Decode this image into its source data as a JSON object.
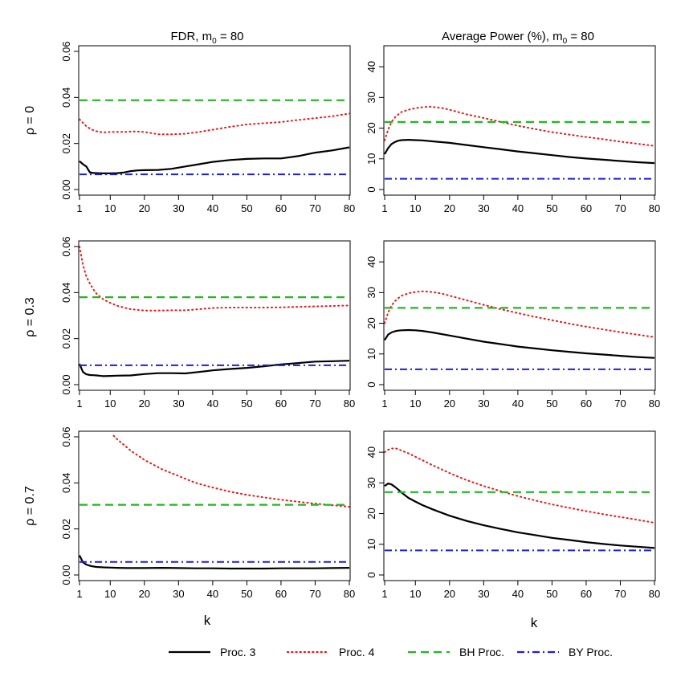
{
  "colors": {
    "proc3": "#000000",
    "proc4": "#e41a1c",
    "bh": "#22b822",
    "by": "#1f1fd6"
  },
  "columns": [
    {
      "title_main": "FDR, m",
      "title_sub": "0",
      "title_rest": " = 80"
    },
    {
      "title_main": "Average Power (%), m",
      "title_sub": "0",
      "title_rest": " = 80"
    }
  ],
  "rows": [
    {
      "label": "ρ = 0"
    },
    {
      "label": "ρ = 0.3"
    },
    {
      "label": "ρ = 0.7"
    }
  ],
  "xlabel": "k",
  "x_ticks": [
    "1",
    "10",
    "20",
    "30",
    "40",
    "50",
    "60",
    "70",
    "80"
  ],
  "legend": [
    {
      "label": "Proc. 3",
      "style": "solid",
      "color_key": "proc3"
    },
    {
      "label": "Proc. 4",
      "style": "dotted",
      "color_key": "proc4"
    },
    {
      "label": "BH Proc.",
      "style": "dashed",
      "color_key": "bh"
    },
    {
      "label": "BY Proc.",
      "style": "dashdot",
      "color_key": "by"
    }
  ],
  "chart_data": [
    {
      "type": "line",
      "row": 0,
      "col": 0,
      "xlim": [
        1,
        80
      ],
      "ylim": [
        0,
        0.06
      ],
      "y_ticks": [
        0.0,
        0.02,
        0.04,
        0.06
      ],
      "y_tick_labels": [
        "0.00",
        "0.02",
        "0.04",
        "0.06"
      ],
      "series": [
        {
          "name": "Proc. 3",
          "x": [
            1,
            2,
            3,
            4,
            5,
            6,
            8,
            10,
            12,
            14,
            16,
            18,
            20,
            24,
            28,
            32,
            36,
            40,
            45,
            50,
            55,
            60,
            65,
            70,
            75,
            80
          ],
          "y": [
            0.0123,
            0.011,
            0.01,
            0.0075,
            0.0072,
            0.0071,
            0.007,
            0.007,
            0.0071,
            0.0074,
            0.008,
            0.0083,
            0.0084,
            0.0085,
            0.009,
            0.01,
            0.011,
            0.012,
            0.0128,
            0.0133,
            0.0135,
            0.0135,
            0.0145,
            0.016,
            0.017,
            0.0183
          ]
        },
        {
          "name": "Proc. 4",
          "x": [
            1,
            2,
            3,
            4,
            5,
            6,
            8,
            10,
            12,
            14,
            16,
            18,
            20,
            24,
            28,
            32,
            36,
            40,
            45,
            50,
            55,
            60,
            65,
            70,
            75,
            80
          ],
          "y": [
            0.0305,
            0.029,
            0.0275,
            0.0265,
            0.0258,
            0.0253,
            0.0248,
            0.025,
            0.025,
            0.025,
            0.0252,
            0.0252,
            0.025,
            0.024,
            0.024,
            0.0242,
            0.025,
            0.026,
            0.0272,
            0.0283,
            0.0288,
            0.0293,
            0.0302,
            0.031,
            0.0318,
            0.033
          ]
        },
        {
          "name": "BH Proc.",
          "x": [
            1,
            80
          ],
          "y": [
            0.0388,
            0.0388
          ]
        },
        {
          "name": "BY Proc.",
          "x": [
            1,
            80
          ],
          "y": [
            0.0066,
            0.0066
          ]
        }
      ]
    },
    {
      "type": "line",
      "row": 0,
      "col": 1,
      "xlim": [
        1,
        80
      ],
      "ylim": [
        0,
        45
      ],
      "y_ticks": [
        0,
        10,
        20,
        30,
        40
      ],
      "y_tick_labels": [
        "0",
        "10",
        "20",
        "30",
        "40"
      ],
      "series": [
        {
          "name": "Proc. 3",
          "x": [
            1,
            2,
            3,
            4,
            5,
            6,
            8,
            10,
            12,
            15,
            20,
            25,
            30,
            35,
            40,
            45,
            50,
            55,
            60,
            65,
            70,
            75,
            80
          ],
          "y": [
            11.5,
            13.5,
            14.8,
            15.5,
            15.9,
            16.1,
            16.2,
            16.1,
            16.0,
            15.7,
            15.2,
            14.5,
            13.8,
            13.1,
            12.4,
            11.8,
            11.2,
            10.6,
            10.1,
            9.7,
            9.3,
            8.9,
            8.6
          ]
        },
        {
          "name": "Proc. 4",
          "x": [
            1,
            2,
            3,
            4,
            5,
            6,
            8,
            10,
            12,
            14,
            16,
            18,
            20,
            25,
            30,
            35,
            40,
            45,
            50,
            55,
            60,
            65,
            70,
            75,
            80
          ],
          "y": [
            16.0,
            19.5,
            22.0,
            23.5,
            24.5,
            25.3,
            26.0,
            26.5,
            26.8,
            27.0,
            26.8,
            26.5,
            26.0,
            24.5,
            23.3,
            22.0,
            20.8,
            19.7,
            18.7,
            17.9,
            17.1,
            16.4,
            15.6,
            14.9,
            14.2
          ]
        },
        {
          "name": "BH Proc.",
          "x": [
            1,
            80
          ],
          "y": [
            22.0,
            22.0
          ]
        },
        {
          "name": "BY Proc.",
          "x": [
            1,
            80
          ],
          "y": [
            3.5,
            3.5
          ]
        }
      ]
    },
    {
      "type": "line",
      "row": 1,
      "col": 0,
      "xlim": [
        1,
        80
      ],
      "ylim": [
        0,
        0.06
      ],
      "y_ticks": [
        0.0,
        0.02,
        0.04,
        0.06
      ],
      "y_tick_labels": [
        "0.00",
        "0.02",
        "0.04",
        "0.06"
      ],
      "series": [
        {
          "name": "Proc. 3",
          "x": [
            1,
            2,
            3,
            4,
            5,
            6,
            8,
            10,
            12,
            16,
            20,
            24,
            28,
            32,
            36,
            40,
            45,
            50,
            55,
            60,
            65,
            70,
            75,
            80
          ],
          "y": [
            0.009,
            0.0055,
            0.0045,
            0.0042,
            0.0041,
            0.004,
            0.0037,
            0.0038,
            0.0039,
            0.004,
            0.0046,
            0.005,
            0.005,
            0.0049,
            0.0055,
            0.0062,
            0.0068,
            0.0073,
            0.008,
            0.0088,
            0.0094,
            0.01,
            0.0102,
            0.0104
          ]
        },
        {
          "name": "Proc. 4",
          "x": [
            1,
            2,
            3,
            4,
            5,
            6,
            8,
            10,
            12,
            14,
            16,
            18,
            20,
            24,
            28,
            32,
            36,
            40,
            45,
            50,
            55,
            60,
            65,
            70,
            75,
            80
          ],
          "y": [
            0.06,
            0.052,
            0.047,
            0.044,
            0.0415,
            0.0395,
            0.037,
            0.0355,
            0.0343,
            0.0335,
            0.0328,
            0.0325,
            0.0322,
            0.0322,
            0.0323,
            0.0323,
            0.0328,
            0.0333,
            0.0335,
            0.0335,
            0.0335,
            0.0336,
            0.0338,
            0.034,
            0.0342,
            0.0344
          ]
        },
        {
          "name": "BH Proc.",
          "x": [
            1,
            80
          ],
          "y": [
            0.038,
            0.038
          ]
        },
        {
          "name": "BY Proc.",
          "x": [
            1,
            80
          ],
          "y": [
            0.0084,
            0.0084
          ]
        }
      ]
    },
    {
      "type": "line",
      "row": 1,
      "col": 1,
      "xlim": [
        1,
        80
      ],
      "ylim": [
        0,
        45
      ],
      "y_ticks": [
        0,
        10,
        20,
        30,
        40
      ],
      "y_tick_labels": [
        "0",
        "10",
        "20",
        "30",
        "40"
      ],
      "series": [
        {
          "name": "Proc. 3",
          "x": [
            1,
            2,
            3,
            4,
            5,
            6,
            8,
            10,
            12,
            15,
            20,
            25,
            30,
            35,
            40,
            45,
            50,
            55,
            60,
            65,
            70,
            75,
            80
          ],
          "y": [
            14.5,
            16.3,
            17.0,
            17.4,
            17.6,
            17.7,
            17.8,
            17.7,
            17.5,
            17.0,
            16.0,
            15.0,
            14.0,
            13.2,
            12.4,
            11.8,
            11.2,
            10.7,
            10.2,
            9.8,
            9.4,
            9.0,
            8.7
          ]
        },
        {
          "name": "Proc. 4",
          "x": [
            1,
            2,
            3,
            4,
            5,
            6,
            8,
            10,
            12,
            14,
            16,
            18,
            20,
            25,
            30,
            35,
            40,
            45,
            50,
            55,
            60,
            65,
            70,
            75,
            80
          ],
          "y": [
            20.0,
            23.5,
            25.8,
            27.2,
            28.2,
            29.0,
            29.8,
            30.2,
            30.4,
            30.3,
            30.0,
            29.6,
            29.0,
            27.5,
            26.0,
            24.6,
            23.3,
            22.1,
            21.0,
            19.9,
            18.9,
            18.0,
            17.1,
            16.3,
            15.5
          ]
        },
        {
          "name": "BH Proc.",
          "x": [
            1,
            80
          ],
          "y": [
            25.0,
            25.0
          ]
        },
        {
          "name": "BY Proc.",
          "x": [
            1,
            80
          ],
          "y": [
            5.0,
            5.0
          ]
        }
      ]
    },
    {
      "type": "line",
      "row": 2,
      "col": 0,
      "xlim": [
        1,
        80
      ],
      "ylim": [
        0,
        0.06
      ],
      "y_ticks": [
        0.0,
        0.02,
        0.04,
        0.06
      ],
      "y_tick_labels": [
        "0.00",
        "0.02",
        "0.04",
        "0.06"
      ],
      "series": [
        {
          "name": "Proc. 3",
          "x": [
            1,
            2,
            3,
            4,
            5,
            6,
            8,
            10,
            12,
            15,
            20,
            25,
            30,
            35,
            40,
            45,
            50,
            55,
            60,
            65,
            70,
            75,
            80
          ],
          "y": [
            0.0085,
            0.0055,
            0.0045,
            0.004,
            0.0037,
            0.0035,
            0.0033,
            0.0032,
            0.0031,
            0.003,
            0.003,
            0.0031,
            0.003,
            0.0029,
            0.0029,
            0.0028,
            0.0028,
            0.0028,
            0.0029,
            0.0029,
            0.0029,
            0.003,
            0.0031
          ]
        },
        {
          "name": "Proc. 4",
          "x": [
            11,
            12,
            14,
            16,
            18,
            20,
            25,
            30,
            35,
            40,
            45,
            50,
            55,
            60,
            65,
            70,
            75,
            80
          ],
          "y": [
            0.0605,
            0.059,
            0.0565,
            0.054,
            0.052,
            0.05,
            0.046,
            0.043,
            0.04,
            0.038,
            0.0362,
            0.0348,
            0.0337,
            0.0327,
            0.0318,
            0.031,
            0.0303,
            0.0296
          ]
        },
        {
          "name": "BH Proc.",
          "x": [
            1,
            80
          ],
          "y": [
            0.0305,
            0.0305
          ]
        },
        {
          "name": "BY Proc.",
          "x": [
            1,
            80
          ],
          "y": [
            0.0057,
            0.0057
          ]
        }
      ]
    },
    {
      "type": "line",
      "row": 2,
      "col": 1,
      "xlim": [
        1,
        80
      ],
      "ylim": [
        0,
        45
      ],
      "y_ticks": [
        0,
        10,
        20,
        30,
        40
      ],
      "y_tick_labels": [
        "0",
        "10",
        "20",
        "30",
        "40"
      ],
      "series": [
        {
          "name": "Proc. 3",
          "x": [
            1,
            2,
            3,
            4,
            5,
            6,
            8,
            10,
            12,
            15,
            20,
            25,
            30,
            35,
            40,
            45,
            50,
            55,
            60,
            65,
            70,
            75,
            80
          ],
          "y": [
            29.0,
            29.8,
            29.5,
            28.7,
            27.8,
            26.8,
            25.1,
            23.9,
            22.8,
            21.4,
            19.3,
            17.6,
            16.2,
            15.0,
            13.9,
            13.0,
            12.1,
            11.4,
            10.7,
            10.1,
            9.6,
            9.2,
            8.8
          ]
        },
        {
          "name": "Proc. 4",
          "x": [
            1,
            2,
            3,
            4,
            5,
            6,
            8,
            10,
            12,
            15,
            20,
            25,
            30,
            35,
            40,
            45,
            50,
            55,
            60,
            65,
            70,
            75,
            80
          ],
          "y": [
            40.0,
            40.8,
            41.2,
            41.3,
            41.0,
            40.5,
            39.6,
            38.5,
            37.4,
            35.8,
            33.2,
            30.9,
            29.0,
            27.3,
            25.7,
            24.3,
            23.0,
            21.9,
            20.8,
            19.8,
            18.9,
            18.0,
            17.0
          ]
        },
        {
          "name": "BH Proc.",
          "x": [
            1,
            80
          ],
          "y": [
            27.0,
            27.0
          ]
        },
        {
          "name": "BY Proc.",
          "x": [
            1,
            80
          ],
          "y": [
            8.0,
            8.0
          ]
        }
      ]
    }
  ]
}
